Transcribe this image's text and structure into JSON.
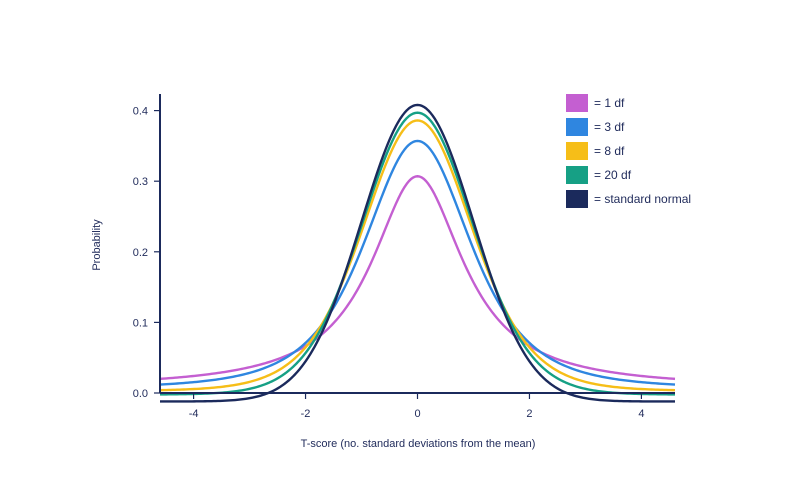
{
  "chart_data": {
    "type": "line",
    "title": "",
    "xlabel": "T-score (no. standard deviations from the mean)",
    "ylabel": "Probability",
    "xlim": [
      -4.6,
      4.6
    ],
    "ylim": [
      0.0,
      0.415
    ],
    "xticks": [
      -4,
      -2,
      0,
      2,
      4
    ],
    "yticks": [
      0.0,
      0.1,
      0.2,
      0.3,
      0.4
    ],
    "ytick_labels": [
      "0.0",
      "0.1",
      "0.2",
      "0.3",
      "0.4"
    ],
    "xtick_labels": [
      "-4",
      "-2",
      "0",
      "2",
      "4"
    ],
    "grid": false,
    "legend_position": "top-right",
    "series": [
      {
        "name": "= 1 df",
        "df": 1,
        "color": "#c45fd1",
        "peak": 0.307,
        "tail": 0.02
      },
      {
        "name": "= 3 df",
        "df": 3,
        "color": "#2f86e0",
        "peak": 0.357,
        "tail": 0.012
      },
      {
        "name": "= 8 df",
        "df": 8,
        "color": "#f6be18",
        "peak": 0.386,
        "tail": 0.004
      },
      {
        "name": "= 20 df",
        "df": 20,
        "color": "#16a085",
        "peak": 0.397,
        "tail": -0.002
      },
      {
        "name": "= standard normal",
        "df": "normal",
        "color": "#1b2a5c",
        "peak": 0.408,
        "tail": -0.012
      }
    ]
  }
}
